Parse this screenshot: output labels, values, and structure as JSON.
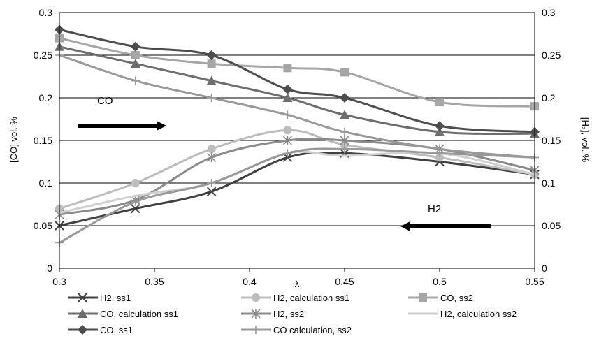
{
  "chart_data": {
    "type": "line",
    "xlabel": "λ",
    "ylabel_left": "[CO] vol. %",
    "ylabel_right": "[H₂], vol. %",
    "xlim": [
      0.3,
      0.55
    ],
    "ylim": [
      0,
      0.3
    ],
    "x_ticks": [
      "0.3",
      "0.35",
      "0.4",
      "0.45",
      "0.5",
      "0.55"
    ],
    "y_ticks": [
      "0",
      "0.05",
      "0.1",
      "0.15",
      "0.2",
      "0.25",
      "0.3"
    ],
    "grid": "horizontal",
    "annotations": [
      {
        "text": "CO",
        "arrow": "right"
      },
      {
        "text": "H2",
        "arrow": "left"
      }
    ],
    "series": [
      {
        "name": "H2, ss1",
        "color": "#404040",
        "marker": "x",
        "x": [
          0.3,
          0.34,
          0.38,
          0.42,
          0.45,
          0.5,
          0.55
        ],
        "values": [
          0.05,
          0.07,
          0.09,
          0.13,
          0.135,
          0.125,
          0.11
        ]
      },
      {
        "name": "H2, calculation ss1",
        "color": "#bcbcbc",
        "marker": "circle",
        "x": [
          0.3,
          0.34,
          0.38,
          0.42,
          0.45,
          0.5,
          0.55
        ],
        "values": [
          0.07,
          0.1,
          0.14,
          0.162,
          0.145,
          0.13,
          0.11
        ]
      },
      {
        "name": "CO, ss2",
        "color": "#a6a6a6",
        "marker": "square",
        "x": [
          0.3,
          0.34,
          0.38,
          0.42,
          0.45,
          0.5,
          0.55
        ],
        "values": [
          0.27,
          0.25,
          0.24,
          0.235,
          0.23,
          0.195,
          0.19
        ]
      },
      {
        "name": "CO, calculation ss1",
        "color": "#6e6e6e",
        "marker": "triangle",
        "x": [
          0.3,
          0.34,
          0.38,
          0.42,
          0.45,
          0.5,
          0.55
        ],
        "values": [
          0.26,
          0.24,
          0.22,
          0.2,
          0.18,
          0.16,
          0.158
        ]
      },
      {
        "name": "H2, ss2",
        "color": "#8a8a8a",
        "marker": "asterisk",
        "x": [
          0.3,
          0.34,
          0.38,
          0.42,
          0.45,
          0.5,
          0.55
        ],
        "values": [
          0.063,
          0.08,
          0.13,
          0.15,
          0.15,
          0.14,
          0.115
        ]
      },
      {
        "name": "H2, calculation ss2",
        "color": "#cfcfcf",
        "marker": "none",
        "x": [
          0.3,
          0.34,
          0.38,
          0.42,
          0.45,
          0.5,
          0.55
        ],
        "values": [
          0.065,
          0.085,
          0.1,
          0.135,
          0.132,
          0.135,
          0.11
        ]
      },
      {
        "name": "CO, ss1",
        "color": "#4d4d4d",
        "marker": "diamond",
        "x": [
          0.3,
          0.34,
          0.38,
          0.42,
          0.45,
          0.5,
          0.55
        ],
        "values": [
          0.28,
          0.26,
          0.25,
          0.21,
          0.2,
          0.167,
          0.16
        ]
      },
      {
        "name": "CO calculation, ss2",
        "color": "#999999",
        "marker": "plus",
        "x": [
          0.3,
          0.34,
          0.38,
          0.42,
          0.45,
          0.5,
          0.55
        ],
        "values": [
          0.03,
          0.078,
          0.1,
          0.135,
          0.14,
          0.135,
          0.13
        ]
      },
      {
        "name": "",
        "color": "#999999",
        "marker": "plus",
        "legend": false,
        "x": [
          0.3,
          0.34,
          0.38,
          0.42,
          0.45,
          0.5,
          0.55
        ],
        "values": [
          0.25,
          0.22,
          0.2,
          0.18,
          0.16,
          0.14,
          0.13
        ]
      }
    ]
  }
}
